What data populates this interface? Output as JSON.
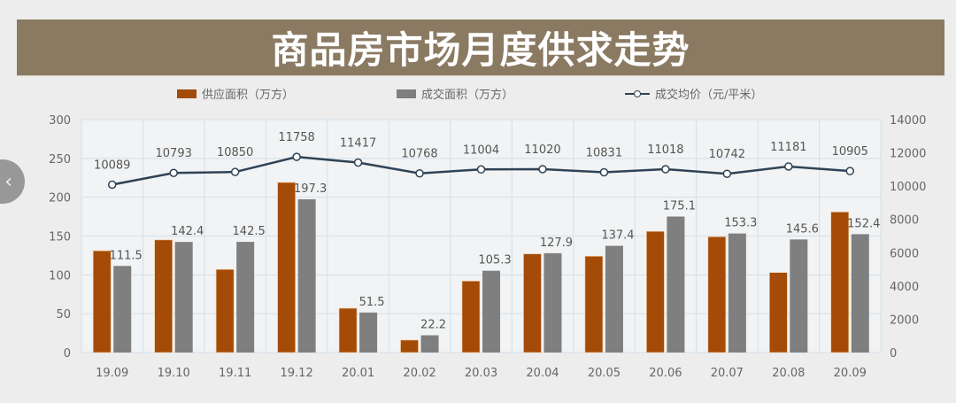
{
  "title": "商品房市场月度供求走势",
  "legend": {
    "supply": "供应面积（万方）",
    "deal": "成交面积（万方）",
    "price": "成交均价（元/平米）"
  },
  "colors": {
    "supply": "#a34b07",
    "deal": "#7f7f7f",
    "price_line": "#2f4356",
    "title_bg": "#8b7a62",
    "grid": "#d3e0ea"
  },
  "nav": {
    "back_icon": "‹"
  },
  "chart_data": {
    "type": "bar+line",
    "title": "商品房市场月度供求走势",
    "categories": [
      "19.09",
      "19.10",
      "19.11",
      "19.12",
      "20.01",
      "20.02",
      "20.03",
      "20.04",
      "20.05",
      "20.06",
      "20.07",
      "20.08",
      "20.09"
    ],
    "series": [
      {
        "name": "供应面积（万方）",
        "type": "bar",
        "axis": "left",
        "values": [
          131,
          145,
          107,
          219,
          57,
          16,
          92,
          127,
          124,
          156,
          149,
          103,
          181
        ]
      },
      {
        "name": "成交面积（万方）",
        "type": "bar",
        "axis": "left",
        "values": [
          111.5,
          142.4,
          142.5,
          197.3,
          51.5,
          22.2,
          105.3,
          127.9,
          137.4,
          175.1,
          153.3,
          145.6,
          152.4
        ],
        "labels": [
          "111.5",
          "142.4",
          "142.5",
          "197.3",
          "51.5",
          "22.2",
          "105.3",
          "127.9",
          "137.4",
          "175.1",
          "153.3",
          "145.6",
          "152.4"
        ]
      },
      {
        "name": "成交均价（元/平米）",
        "type": "line",
        "axis": "right",
        "values": [
          10089,
          10793,
          10850,
          11758,
          11417,
          10768,
          11004,
          11020,
          10831,
          11018,
          10742,
          11181,
          10905
        ],
        "labels": [
          "10089",
          "10793",
          "10850",
          "11758",
          "11417",
          "10768",
          "11004",
          "11020",
          "10831",
          "11018",
          "10742",
          "11181",
          "10905"
        ]
      }
    ],
    "left_axis": {
      "ylim": [
        0,
        300
      ],
      "ticks": [
        "0",
        "50",
        "100",
        "150",
        "200",
        "250",
        "300"
      ]
    },
    "right_axis": {
      "ylim": [
        0,
        14000
      ],
      "ticks": [
        "0",
        "2000",
        "4000",
        "6000",
        "8000",
        "10000",
        "12000",
        "14000"
      ]
    },
    "grid": true,
    "legend_position": "top"
  }
}
